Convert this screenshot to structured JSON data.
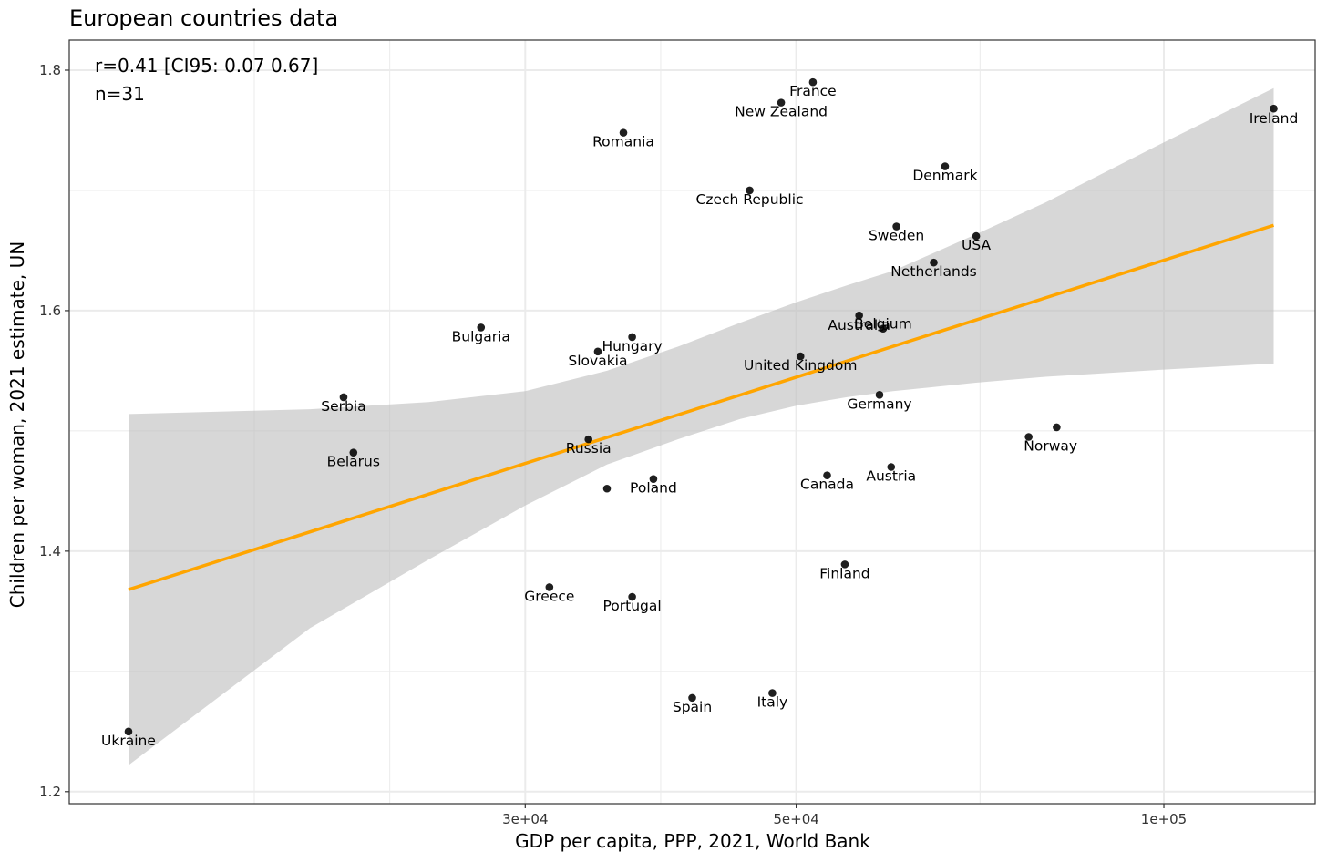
{
  "chart_data": {
    "type": "scatter",
    "title": "European countries data",
    "xlabel": "GDP per capita, PPP, 2021, World Bank",
    "ylabel": "Children per woman, 2021 estimate, UN",
    "x_scale": "log10",
    "xlim": [
      12700,
      133000
    ],
    "ylim": [
      1.19,
      1.825
    ],
    "x_ticks": [
      30000,
      50000,
      100000
    ],
    "x_tick_labels": [
      "3e+04",
      "5e+04",
      "1e+05"
    ],
    "y_ticks": [
      1.2,
      1.4,
      1.6,
      1.8
    ],
    "y_tick_labels": [
      "1.2",
      "1.4",
      "1.6",
      "1.8"
    ],
    "grid": true,
    "annotations": [
      "r=0.41 [CI95: 0.07 0.67]",
      "n=31"
    ],
    "colors": {
      "points": "#000000",
      "trend_line": "#FFA500",
      "ci_band": "#BEBEBE",
      "grid": "#EBEBEB"
    },
    "points": [
      {
        "label": "Ukraine",
        "x": 14200,
        "y": 1.25
      },
      {
        "label": "Serbia",
        "x": 21300,
        "y": 1.528
      },
      {
        "label": "Belarus",
        "x": 21700,
        "y": 1.482
      },
      {
        "label": "Bulgaria",
        "x": 27600,
        "y": 1.586
      },
      {
        "label": "Greece",
        "x": 31400,
        "y": 1.37
      },
      {
        "label": "Russia",
        "x": 33800,
        "y": 1.493
      },
      {
        "label": "Slovakia",
        "x": 34400,
        "y": 1.566
      },
      {
        "label": "",
        "x": 35000,
        "y": 1.452
      },
      {
        "label": "Romania",
        "x": 36100,
        "y": 1.748
      },
      {
        "label": "Hungary",
        "x": 36700,
        "y": 1.578
      },
      {
        "label": "Portugal",
        "x": 36700,
        "y": 1.362
      },
      {
        "label": "Poland",
        "x": 38200,
        "y": 1.46
      },
      {
        "label": "Spain",
        "x": 41100,
        "y": 1.278
      },
      {
        "label": "Czech Republic",
        "x": 45800,
        "y": 1.7
      },
      {
        "label": "Italy",
        "x": 47800,
        "y": 1.282
      },
      {
        "label": "New Zealand",
        "x": 48600,
        "y": 1.773
      },
      {
        "label": "United Kingdom",
        "x": 50400,
        "y": 1.562
      },
      {
        "label": "France",
        "x": 51600,
        "y": 1.79
      },
      {
        "label": "Canada",
        "x": 53000,
        "y": 1.463
      },
      {
        "label": "Finland",
        "x": 54800,
        "y": 1.389
      },
      {
        "label": "Australia",
        "x": 56300,
        "y": 1.596
      },
      {
        "label": "Germany",
        "x": 58500,
        "y": 1.53
      },
      {
        "label": "Belgium",
        "x": 58900,
        "y": 1.585
      },
      {
        "label": "Austria",
        "x": 59800,
        "y": 1.47
      },
      {
        "label": "Sweden",
        "x": 60400,
        "y": 1.67
      },
      {
        "label": "Netherlands",
        "x": 64800,
        "y": 1.64
      },
      {
        "label": "Denmark",
        "x": 66200,
        "y": 1.72
      },
      {
        "label": "USA",
        "x": 70200,
        "y": 1.662
      },
      {
        "label": "Norway",
        "x": 77500,
        "y": 1.495
      },
      {
        "label": "",
        "x": 81700,
        "y": 1.503
      },
      {
        "label": "Ireland",
        "x": 123000,
        "y": 1.768
      }
    ],
    "trend": {
      "x": [
        14200,
        123000
      ],
      "y": [
        1.368,
        1.671
      ]
    },
    "ci_band": {
      "x": [
        14200,
        20000,
        25000,
        30000,
        35000,
        40000,
        45000,
        50000,
        55000,
        60000,
        70000,
        80000,
        100000,
        123000
      ],
      "lower": [
        1.222,
        1.336,
        1.393,
        1.438,
        1.472,
        1.493,
        1.51,
        1.521,
        1.528,
        1.533,
        1.54,
        1.545,
        1.551,
        1.556
      ],
      "upper": [
        1.514,
        1.518,
        1.524,
        1.533,
        1.55,
        1.57,
        1.59,
        1.607,
        1.621,
        1.633,
        1.663,
        1.69,
        1.74,
        1.785
      ]
    }
  }
}
